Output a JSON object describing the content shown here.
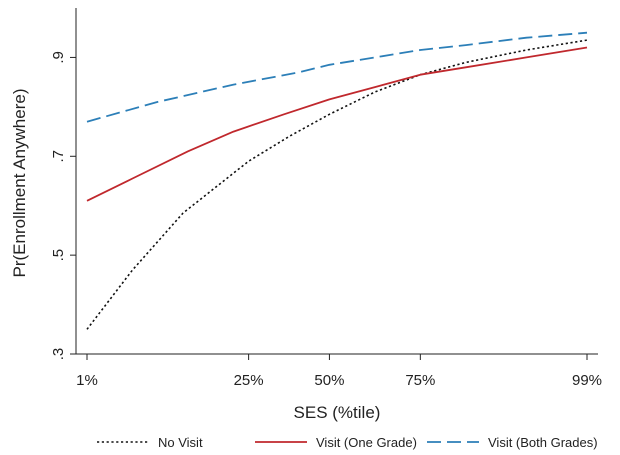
{
  "chart_data": {
    "type": "line",
    "xlabel": "SES (%tile)",
    "ylabel": "Pr(Enrollment Anywhere)",
    "xlim": [
      0,
      100
    ],
    "ylim": [
      0.3,
      1.0
    ],
    "x_ticks": [
      {
        "value": 1,
        "label": "1%"
      },
      {
        "value": 33,
        "label": "25%"
      },
      {
        "value": 49,
        "label": "50%"
      },
      {
        "value": 67,
        "label": "75%"
      },
      {
        "value": 100,
        "label": "99%"
      }
    ],
    "y_ticks": [
      {
        "value": 0.3,
        "label": ".3"
      },
      {
        "value": 0.5,
        "label": ".5"
      },
      {
        "value": 0.7,
        "label": ".7"
      },
      {
        "value": 0.9,
        "label": ".9"
      }
    ],
    "legend": "bottom",
    "grid": false,
    "series": [
      {
        "name": "No Visit",
        "style": "dotted",
        "color": "#111111",
        "points": [
          [
            1,
            0.35
          ],
          [
            10,
            0.47
          ],
          [
            20,
            0.585
          ],
          [
            33,
            0.69
          ],
          [
            41,
            0.74
          ],
          [
            49,
            0.785
          ],
          [
            58,
            0.83
          ],
          [
            67,
            0.865
          ],
          [
            76,
            0.89
          ],
          [
            88,
            0.915
          ],
          [
            100,
            0.935
          ]
        ]
      },
      {
        "name": "Visit (One Grade)",
        "style": "solid",
        "color": "#c0282d",
        "points": [
          [
            1,
            0.61
          ],
          [
            10,
            0.655
          ],
          [
            21,
            0.71
          ],
          [
            30,
            0.75
          ],
          [
            40,
            0.785
          ],
          [
            49,
            0.815
          ],
          [
            58,
            0.84
          ],
          [
            67,
            0.865
          ],
          [
            76,
            0.88
          ],
          [
            88,
            0.9
          ],
          [
            100,
            0.92
          ]
        ]
      },
      {
        "name": "Visit (Both Grades)",
        "style": "dashed",
        "color": "#2c7fb8",
        "points": [
          [
            1,
            0.77
          ],
          [
            15,
            0.81
          ],
          [
            30,
            0.845
          ],
          [
            43,
            0.87
          ],
          [
            49,
            0.885
          ],
          [
            58,
            0.9
          ],
          [
            67,
            0.915
          ],
          [
            76,
            0.925
          ],
          [
            88,
            0.94
          ],
          [
            100,
            0.95
          ]
        ]
      }
    ]
  }
}
